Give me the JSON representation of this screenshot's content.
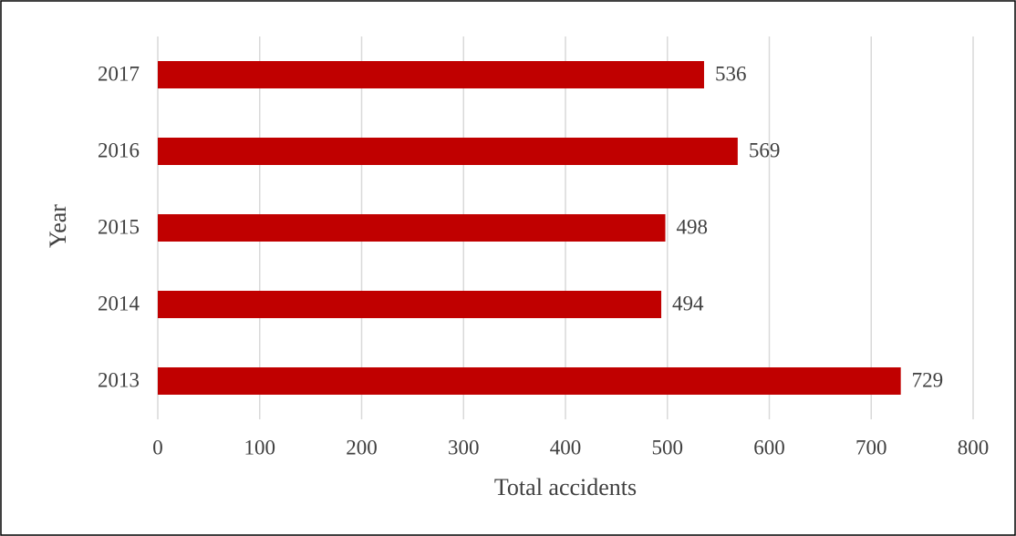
{
  "chart_data": {
    "type": "bar",
    "orientation": "horizontal",
    "xlabel": "Total accidents",
    "ylabel": "Year",
    "categories": [
      "2013",
      "2014",
      "2015",
      "2016",
      "2017"
    ],
    "values": [
      729,
      494,
      498,
      569,
      536
    ],
    "color": "#c00000",
    "xlim": [
      0,
      800
    ],
    "xticks": [
      0,
      100,
      200,
      300,
      400,
      500,
      600,
      700,
      800
    ],
    "grid": true
  }
}
